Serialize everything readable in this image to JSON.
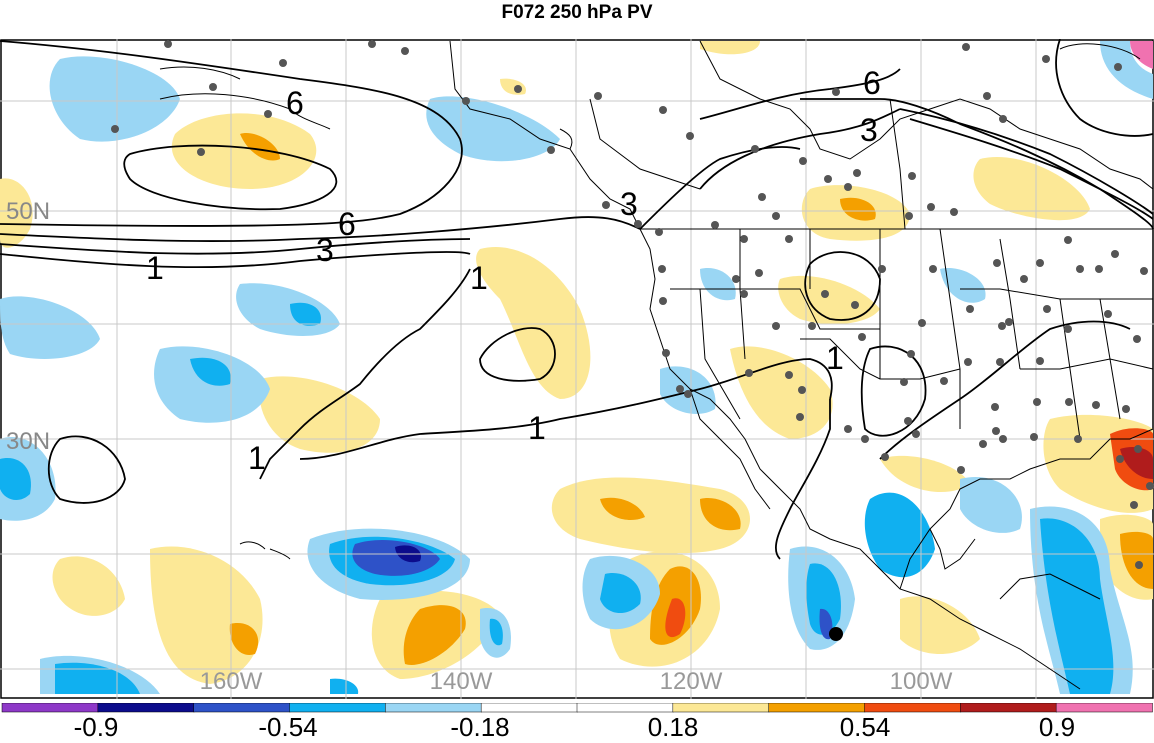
{
  "title": "F072 250 hPa PV",
  "lat_labels": [
    "50N",
    "30N"
  ],
  "lon_labels": [
    "160W",
    "140W",
    "120W",
    "100W"
  ],
  "contour_labels": [
    "6",
    "6",
    "6",
    "3",
    "3",
    "3",
    "1",
    "1",
    "1",
    "1",
    "1"
  ],
  "colorbar": {
    "colors": [
      "#8e38c8",
      "#0c0c8c",
      "#2e52c8",
      "#10b0f0",
      "#9ad6f4",
      "#ffffff",
      "#ffffff",
      "#fce896",
      "#f4a000",
      "#f04c10",
      "#b01c1c",
      "#f072b0"
    ],
    "labels": [
      "-0.9",
      "-0.54",
      "-0.18",
      "0.18",
      "0.54",
      "0.9"
    ]
  },
  "colors": {
    "land_line": "#000000",
    "grid": "#c8c8c8",
    "station_dot": "#555555"
  }
}
